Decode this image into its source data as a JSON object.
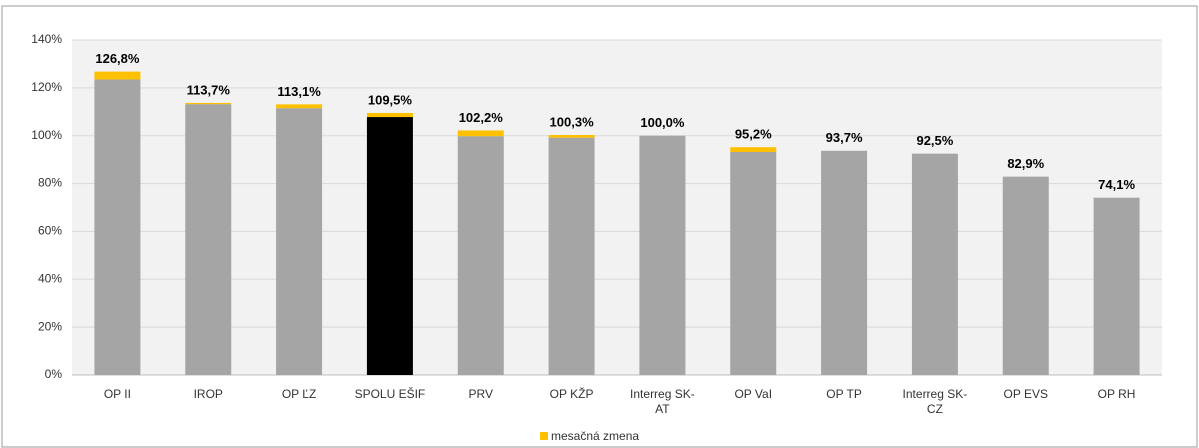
{
  "chart_data": {
    "type": "stacked_bar",
    "categories": [
      "OP II",
      "IROP",
      "OP ĽZ",
      "SPOLU EŠIF",
      "PRV",
      "OP KŽP",
      "Interreg SK-AT",
      "OP VaI",
      "OP TP",
      "Interreg SK-CZ",
      "OP EVS",
      "OP RH"
    ],
    "series": [
      {
        "colors": [
          "#a5a5a5",
          "#a5a5a5",
          "#a5a5a5",
          "#000000",
          "#a5a5a5",
          "#a5a5a5",
          "#a5a5a5",
          "#a5a5a5",
          "#a5a5a5",
          "#a5a5a5",
          "#a5a5a5",
          "#a5a5a5"
        ],
        "values": [
          123.5,
          113.2,
          111.5,
          107.8,
          99.8,
          99.2,
          100.0,
          93.2,
          93.7,
          92.5,
          82.9,
          74.1
        ]
      },
      {
        "name": "mesačná zmena",
        "color": "#ffc000",
        "values": [
          3.3,
          0.5,
          1.6,
          1.7,
          2.4,
          1.1,
          0,
          2.0,
          0,
          0,
          0,
          0
        ]
      }
    ],
    "totals": [
      126.8,
      113.7,
      113.1,
      109.5,
      102.2,
      100.3,
      100.0,
      95.2,
      93.7,
      92.5,
      82.9,
      74.1
    ],
    "total_labels": [
      "126,8%",
      "113,7%",
      "113,1%",
      "109,5%",
      "102,2%",
      "100,3%",
      "100,0%",
      "95,2%",
      "93,7%",
      "92,5%",
      "82,9%",
      "74,1%"
    ],
    "ylim": [
      0,
      140
    ],
    "yticks": [
      {
        "value": 0,
        "label": "0%"
      },
      {
        "value": 20,
        "label": "20%"
      },
      {
        "value": 40,
        "label": "40%"
      },
      {
        "value": 60,
        "label": "60%"
      },
      {
        "value": 80,
        "label": "80%"
      },
      {
        "value": 100,
        "label": "100%"
      },
      {
        "value": 120,
        "label": "120%"
      },
      {
        "value": 140,
        "label": "140%"
      }
    ],
    "grid": true,
    "legend": "bottom"
  }
}
